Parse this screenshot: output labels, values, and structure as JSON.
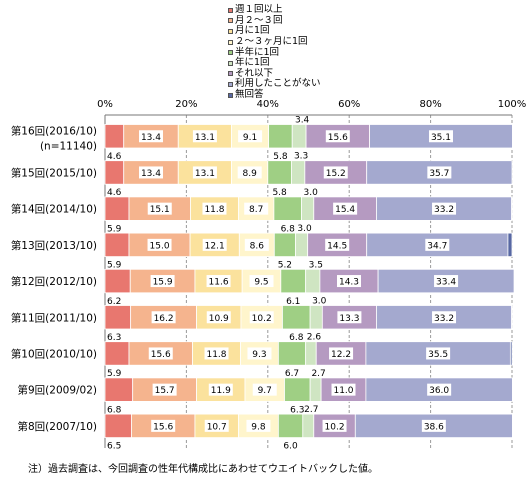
{
  "chart_data": {
    "type": "bar",
    "orientation": "horizontal",
    "stacked": true,
    "xlim": [
      0,
      100
    ],
    "ticks": [
      "0%",
      "20%",
      "40%",
      "60%",
      "80%",
      "100%"
    ],
    "legend_position": "top",
    "series": [
      {
        "name": "週１回以上",
        "color": "#e8776f"
      },
      {
        "name": "月２～３回",
        "color": "#f5b48e"
      },
      {
        "name": "月に1回",
        "color": "#fbe29d"
      },
      {
        "name": "２～３ヶ月に1回",
        "color": "#fff5cc"
      },
      {
        "name": "半年に1回",
        "color": "#9fcf84"
      },
      {
        "name": "年に1回",
        "color": "#cfe5c2"
      },
      {
        "name": "それ以下",
        "color": "#b59ac1"
      },
      {
        "name": "利用したことがない",
        "color": "#a4a9cf"
      },
      {
        "name": "無回答",
        "color": "#5868a3"
      }
    ],
    "rows": [
      {
        "label": "第16回(2016/10)",
        "sublabel": "(n=11140)",
        "values": [
          4.6,
          13.4,
          13.1,
          9.1,
          5.8,
          3.4,
          15.6,
          35.1
        ]
      },
      {
        "label": "第15回(2015/10)",
        "sublabel": "",
        "values": [
          4.6,
          13.4,
          13.1,
          8.9,
          5.8,
          3.3,
          15.2,
          35.7
        ]
      },
      {
        "label": "第14回(2014/10)",
        "sublabel": "",
        "values": [
          5.9,
          15.1,
          11.8,
          8.7,
          6.8,
          3.0,
          15.4,
          33.2
        ]
      },
      {
        "label": "第13回(2013/10)",
        "sublabel": "",
        "values": [
          5.9,
          15.0,
          12.1,
          8.6,
          5.2,
          3.0,
          14.5,
          34.7
        ]
      },
      {
        "label": "第12回(2012/10)",
        "sublabel": "",
        "values": [
          6.2,
          15.9,
          11.6,
          9.5,
          6.1,
          3.5,
          14.3,
          33.4
        ]
      },
      {
        "label": "第11回(2011/10)",
        "sublabel": "",
        "values": [
          6.3,
          16.2,
          10.9,
          10.2,
          6.8,
          3.0,
          13.3,
          33.2
        ]
      },
      {
        "label": "第10回(2010/10)",
        "sublabel": "",
        "values": [
          5.9,
          15.6,
          11.8,
          9.3,
          6.7,
          2.6,
          12.2,
          35.5
        ]
      },
      {
        "label": "第9回(2009/02)",
        "sublabel": "",
        "values": [
          6.8,
          15.7,
          11.9,
          9.7,
          6.3,
          2.7,
          11.0,
          36.0
        ]
      },
      {
        "label": "第8回(2007/10)",
        "sublabel": "",
        "values": [
          6.5,
          15.6,
          10.7,
          9.8,
          6.0,
          2.7,
          10.2,
          38.6
        ]
      }
    ]
  },
  "footnote": "注）過去調査は、今回調査の性年代構成比にあわせてウエイトバックした値。"
}
